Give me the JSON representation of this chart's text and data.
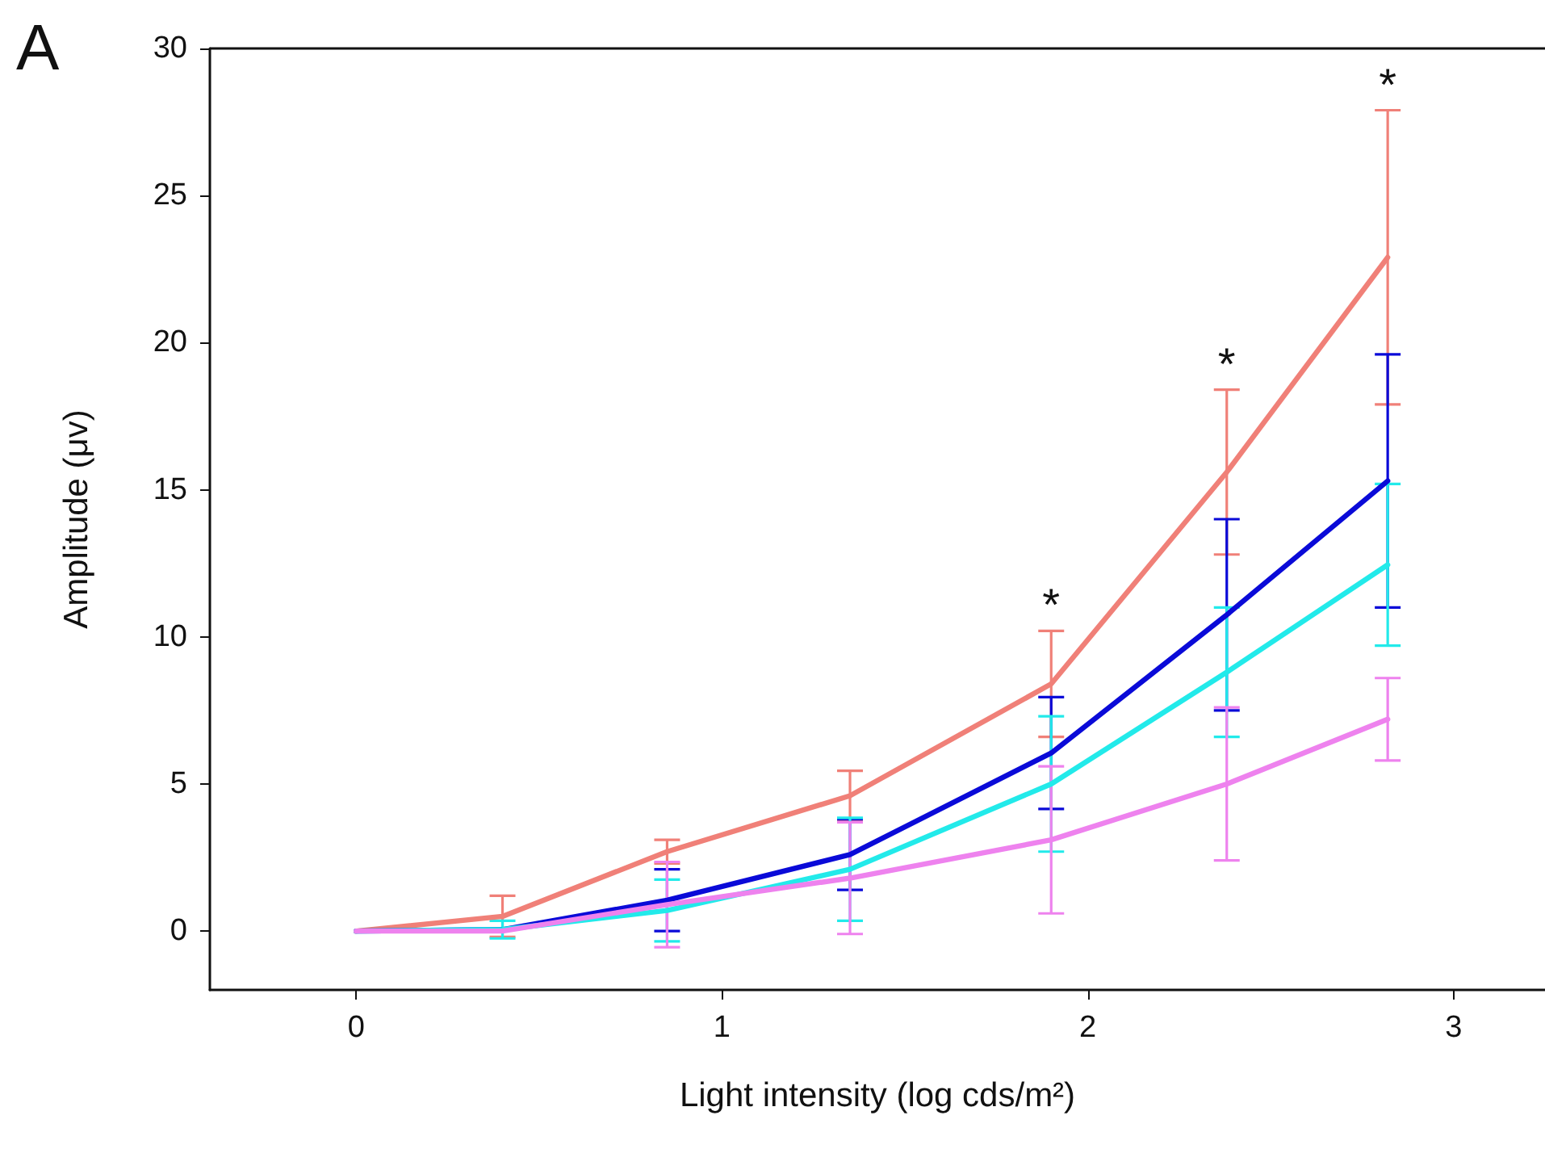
{
  "chart_data": {
    "type": "line",
    "xlabel": "Light intensity (log cds/m²)",
    "ylabel": "Amplitude (μv)",
    "x": [
      0,
      0.4,
      0.85,
      1.35,
      1.9,
      2.38,
      2.82
    ],
    "series": [
      {
        "color": "#f08078",
        "values": [
          0,
          0.5,
          2.7,
          4.6,
          8.4,
          15.6,
          22.9
        ],
        "errors": [
          null,
          0.7,
          0.4,
          0.85,
          1.8,
          2.8,
          5.0
        ]
      },
      {
        "color": "#0a0ad8",
        "values": [
          0,
          0.05,
          1.05,
          2.6,
          6.05,
          10.75,
          15.3
        ],
        "errors": [
          null,
          null,
          1.05,
          1.2,
          1.9,
          3.25,
          4.3
        ]
      },
      {
        "color": "#22eaea",
        "values": [
          0,
          0.05,
          0.7,
          2.1,
          5.0,
          8.8,
          12.45
        ],
        "errors": [
          null,
          0.3,
          1.05,
          1.75,
          2.3,
          2.2,
          2.75
        ]
      },
      {
        "color": "#ee82ee",
        "values": [
          0,
          0,
          0.9,
          1.8,
          3.1,
          5.0,
          7.2
        ],
        "errors": [
          null,
          null,
          1.45,
          1.9,
          2.5,
          2.6,
          1.4
        ]
      }
    ],
    "annotations": [
      "A",
      "*",
      "*",
      "*"
    ],
    "xlim": [
      -0.4,
      3.25
    ],
    "xticks": [
      0,
      1,
      2,
      3
    ],
    "ylim": [
      -2,
      30
    ],
    "yticks": [
      0,
      5,
      10,
      15,
      20,
      25,
      30
    ],
    "grid": false,
    "marker": "none",
    "line_style": "solid"
  }
}
